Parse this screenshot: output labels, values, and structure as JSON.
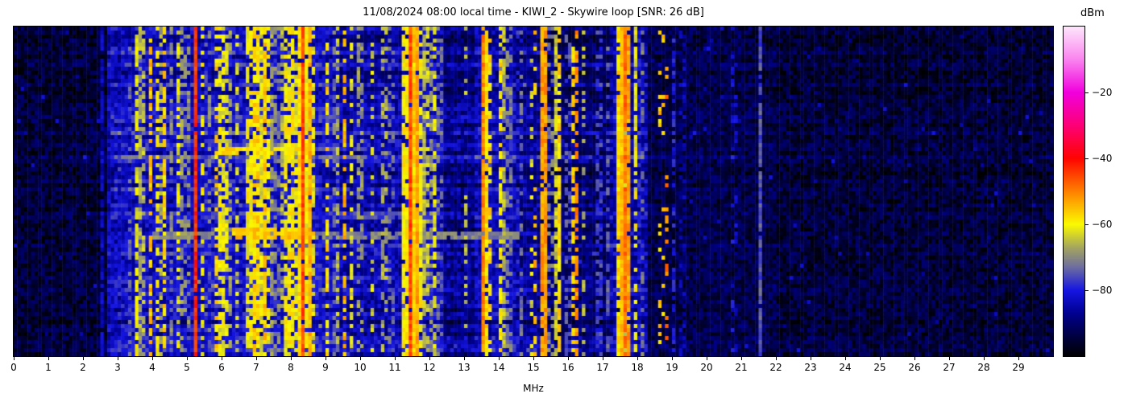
{
  "figure": {
    "title": "11/08/2024 08:00 local time - KIWI_2 - Skywire loop [SNR: 26 dB]"
  },
  "chart_data": {
    "type": "heatmap",
    "subtype": "radio-spectrum-waterfall",
    "title": "11/08/2024 08:00 local time - KIWI_2 - Skywire loop [SNR: 26 dB]",
    "xlabel": "MHz",
    "x_range": [
      0,
      30
    ],
    "x_ticks": [
      0,
      1,
      2,
      3,
      4,
      5,
      6,
      7,
      8,
      9,
      10,
      11,
      12,
      13,
      14,
      15,
      16,
      17,
      18,
      19,
      20,
      21,
      22,
      23,
      24,
      25,
      26,
      27,
      28,
      29
    ],
    "grid": false,
    "colorbar": {
      "label": "dBm",
      "range_top": 0,
      "range_bottom": -100,
      "ticks": [
        {
          "value": -20,
          "label": "−20"
        },
        {
          "value": -40,
          "label": "−40"
        },
        {
          "value": -60,
          "label": "−60"
        },
        {
          "value": -80,
          "label": "−80"
        }
      ],
      "colormap": [
        [
          0,
          "#fde6fc"
        ],
        [
          -10,
          "#fa84ef"
        ],
        [
          -20,
          "#f100dd"
        ],
        [
          -30,
          "#fd0076"
        ],
        [
          -40,
          "#ff0400"
        ],
        [
          -50,
          "#ff8000"
        ],
        [
          -60,
          "#fafa00"
        ],
        [
          -67,
          "#a5a55f"
        ],
        [
          -73,
          "#6d6da0"
        ],
        [
          -80,
          "#1515e2"
        ],
        [
          -87,
          "#00008f"
        ],
        [
          -94,
          "#000040"
        ],
        [
          -100,
          "#000000"
        ]
      ]
    },
    "noise_floor_regions_dbm": [
      {
        "from": 0.0,
        "to": 2.75,
        "floor": -95
      },
      {
        "from": 2.75,
        "to": 5.6,
        "floor": -84
      },
      {
        "from": 5.6,
        "to": 9.4,
        "floor": -83
      },
      {
        "from": 9.4,
        "to": 11.2,
        "floor": -86
      },
      {
        "from": 11.2,
        "to": 12.45,
        "floor": -84
      },
      {
        "from": 12.45,
        "to": 13.35,
        "floor": -89
      },
      {
        "from": 13.35,
        "to": 14.5,
        "floor": -85
      },
      {
        "from": 14.5,
        "to": 15.2,
        "floor": -88
      },
      {
        "from": 15.2,
        "to": 17.25,
        "floor": -91
      },
      {
        "from": 17.25,
        "to": 18.3,
        "floor": -86
      },
      {
        "from": 18.3,
        "to": 22.0,
        "floor": -93.5
      },
      {
        "from": 22.0,
        "to": 30.0,
        "floor": -95
      }
    ],
    "signal_bands": [
      {
        "f_mhz": 2.57,
        "width_mhz": 0.05,
        "level_dbm": -80,
        "duty": 0.85
      },
      {
        "f_mhz": 2.72,
        "width_mhz": 0.04,
        "level_dbm": -86,
        "duty": 0.6
      },
      {
        "f_mhz": 3.2,
        "width_mhz": 0.05,
        "level_dbm": -76,
        "duty": 0.55
      },
      {
        "f_mhz": 3.33,
        "width_mhz": 0.04,
        "level_dbm": -70,
        "duty": 0.4
      },
      {
        "f_mhz": 3.58,
        "width_mhz": 0.09,
        "level_dbm": -57,
        "duty": 0.75
      },
      {
        "f_mhz": 3.73,
        "width_mhz": 0.05,
        "level_dbm": -62,
        "duty": 0.5
      },
      {
        "f_mhz": 3.95,
        "width_mhz": 0.06,
        "level_dbm": -55,
        "duty": 0.6
      },
      {
        "f_mhz": 4.15,
        "width_mhz": 0.05,
        "level_dbm": -60,
        "duty": 0.45
      },
      {
        "f_mhz": 4.33,
        "width_mhz": 0.06,
        "level_dbm": -54,
        "duty": 0.6
      },
      {
        "f_mhz": 4.55,
        "width_mhz": 0.05,
        "level_dbm": -70,
        "duty": 0.5
      },
      {
        "f_mhz": 4.78,
        "width_mhz": 0.06,
        "level_dbm": -57,
        "duty": 0.55
      },
      {
        "f_mhz": 5.0,
        "width_mhz": 0.05,
        "level_dbm": -61,
        "duty": 0.4
      },
      {
        "f_mhz": 5.26,
        "width_mhz": 0.06,
        "level_dbm": -42,
        "duty": 0.97
      },
      {
        "f_mhz": 5.45,
        "width_mhz": 0.05,
        "level_dbm": -60,
        "duty": 0.4
      },
      {
        "f_mhz": 5.62,
        "width_mhz": 0.04,
        "level_dbm": -64,
        "duty": 0.35
      },
      {
        "f_mhz": 5.85,
        "width_mhz": 0.06,
        "level_dbm": -57,
        "duty": 0.5
      },
      {
        "f_mhz": 6.0,
        "width_mhz": 0.09,
        "level_dbm": -54,
        "duty": 0.7
      },
      {
        "f_mhz": 6.18,
        "width_mhz": 0.06,
        "level_dbm": -57,
        "duty": 0.55
      },
      {
        "f_mhz": 6.45,
        "width_mhz": 0.05,
        "level_dbm": -62,
        "duty": 0.4
      },
      {
        "f_mhz": 6.8,
        "width_mhz": 0.09,
        "level_dbm": -53,
        "duty": 0.7
      },
      {
        "f_mhz": 7.0,
        "width_mhz": 0.11,
        "level_dbm": -51,
        "duty": 0.8
      },
      {
        "f_mhz": 7.22,
        "width_mhz": 0.09,
        "level_dbm": -52,
        "duty": 0.75
      },
      {
        "f_mhz": 7.38,
        "width_mhz": 0.06,
        "level_dbm": -56,
        "duty": 0.55
      },
      {
        "f_mhz": 7.6,
        "width_mhz": 0.05,
        "level_dbm": -62,
        "duty": 0.4
      },
      {
        "f_mhz": 7.82,
        "width_mhz": 0.06,
        "level_dbm": -55,
        "duty": 0.6
      },
      {
        "f_mhz": 8.0,
        "width_mhz": 0.08,
        "level_dbm": -52,
        "duty": 0.7
      },
      {
        "f_mhz": 8.17,
        "width_mhz": 0.05,
        "level_dbm": -58,
        "duty": 0.5
      },
      {
        "f_mhz": 8.34,
        "width_mhz": 0.07,
        "level_dbm": -44,
        "duty": 0.96
      },
      {
        "f_mhz": 8.52,
        "width_mhz": 0.09,
        "level_dbm": -50,
        "duty": 0.9
      },
      {
        "f_mhz": 8.67,
        "width_mhz": 0.05,
        "level_dbm": -58,
        "duty": 0.5
      },
      {
        "f_mhz": 9.05,
        "width_mhz": 0.05,
        "level_dbm": -58,
        "duty": 0.5
      },
      {
        "f_mhz": 9.32,
        "width_mhz": 0.05,
        "level_dbm": -60,
        "duty": 0.45
      },
      {
        "f_mhz": 9.55,
        "width_mhz": 0.06,
        "level_dbm": -55,
        "duty": 0.55
      },
      {
        "f_mhz": 9.77,
        "width_mhz": 0.05,
        "level_dbm": -58,
        "duty": 0.5
      },
      {
        "f_mhz": 10.0,
        "width_mhz": 0.05,
        "level_dbm": -60,
        "duty": 0.4
      },
      {
        "f_mhz": 10.35,
        "width_mhz": 0.05,
        "level_dbm": -63,
        "duty": 0.35
      },
      {
        "f_mhz": 10.7,
        "width_mhz": 0.05,
        "level_dbm": -58,
        "duty": 0.5
      },
      {
        "f_mhz": 10.9,
        "width_mhz": 0.04,
        "level_dbm": -64,
        "duty": 0.35
      },
      {
        "f_mhz": 11.3,
        "width_mhz": 0.08,
        "level_dbm": -52,
        "duty": 0.8
      },
      {
        "f_mhz": 11.46,
        "width_mhz": 0.09,
        "level_dbm": -44,
        "duty": 0.97
      },
      {
        "f_mhz": 11.62,
        "width_mhz": 0.1,
        "level_dbm": -49,
        "duty": 0.93
      },
      {
        "f_mhz": 11.78,
        "width_mhz": 0.07,
        "level_dbm": -55,
        "duty": 0.7
      },
      {
        "f_mhz": 11.93,
        "width_mhz": 0.05,
        "level_dbm": -60,
        "duty": 0.5
      },
      {
        "f_mhz": 12.12,
        "width_mhz": 0.05,
        "level_dbm": -57,
        "duty": 0.5
      },
      {
        "f_mhz": 12.3,
        "width_mhz": 0.05,
        "level_dbm": -64,
        "duty": 0.4
      },
      {
        "f_mhz": 13.05,
        "width_mhz": 0.04,
        "level_dbm": -66,
        "duty": 0.35
      },
      {
        "f_mhz": 13.58,
        "width_mhz": 0.06,
        "level_dbm": -46,
        "duty": 0.92
      },
      {
        "f_mhz": 13.75,
        "width_mhz": 0.05,
        "level_dbm": -58,
        "duty": 0.5
      },
      {
        "f_mhz": 14.08,
        "width_mhz": 0.06,
        "level_dbm": -54,
        "duty": 0.65
      },
      {
        "f_mhz": 14.3,
        "width_mhz": 0.05,
        "level_dbm": -62,
        "duty": 0.4
      },
      {
        "f_mhz": 14.62,
        "width_mhz": 0.05,
        "level_dbm": -68,
        "duty": 0.4
      },
      {
        "f_mhz": 15.02,
        "width_mhz": 0.05,
        "level_dbm": -50,
        "duty": 0.3
      },
      {
        "f_mhz": 15.3,
        "width_mhz": 0.06,
        "level_dbm": -44,
        "duty": 0.93
      },
      {
        "f_mhz": 15.5,
        "width_mhz": 0.04,
        "level_dbm": -62,
        "duty": 0.35
      },
      {
        "f_mhz": 15.72,
        "width_mhz": 0.05,
        "level_dbm": -52,
        "duty": 0.8
      },
      {
        "f_mhz": 16.0,
        "width_mhz": 0.04,
        "level_dbm": -66,
        "duty": 0.35
      },
      {
        "f_mhz": 16.22,
        "width_mhz": 0.06,
        "level_dbm": -46,
        "duty": 0.6
      },
      {
        "f_mhz": 16.45,
        "width_mhz": 0.04,
        "level_dbm": -66,
        "duty": 0.35
      },
      {
        "f_mhz": 16.9,
        "width_mhz": 0.05,
        "level_dbm": -68,
        "duty": 0.45
      },
      {
        "f_mhz": 17.15,
        "width_mhz": 0.04,
        "level_dbm": -74,
        "duty": 0.5
      },
      {
        "f_mhz": 17.5,
        "width_mhz": 0.07,
        "level_dbm": -50,
        "duty": 0.92
      },
      {
        "f_mhz": 17.62,
        "width_mhz": 0.07,
        "level_dbm": -44,
        "duty": 0.95
      },
      {
        "f_mhz": 17.74,
        "width_mhz": 0.07,
        "level_dbm": -51,
        "duty": 0.9
      },
      {
        "f_mhz": 17.97,
        "width_mhz": 0.05,
        "level_dbm": -57,
        "duty": 0.55
      },
      {
        "f_mhz": 18.12,
        "width_mhz": 0.04,
        "level_dbm": -66,
        "duty": 0.4
      },
      {
        "f_mhz": 18.7,
        "width_mhz": 0.05,
        "level_dbm": -47,
        "duty": 0.15
      },
      {
        "f_mhz": 18.85,
        "width_mhz": 0.05,
        "level_dbm": -50,
        "duty": 0.13
      },
      {
        "f_mhz": 19.05,
        "width_mhz": 0.04,
        "level_dbm": -80,
        "duty": 0.5
      },
      {
        "f_mhz": 19.3,
        "width_mhz": 0.04,
        "level_dbm": -76,
        "duty": 0.3
      },
      {
        "f_mhz": 20.1,
        "width_mhz": 0.04,
        "level_dbm": -83,
        "duty": 0.8
      },
      {
        "f_mhz": 20.8,
        "width_mhz": 0.04,
        "level_dbm": -72,
        "duty": 0.22
      },
      {
        "f_mhz": 21.55,
        "width_mhz": 0.05,
        "level_dbm": -75,
        "duty": 0.9
      },
      {
        "f_mhz": 23.2,
        "width_mhz": 0.03,
        "level_dbm": -87,
        "duty": 0.4
      }
    ],
    "horizontal_streaks": [
      {
        "row_from": 0.355,
        "row_to": 0.385,
        "f_from": 5.9,
        "f_to": 8.65,
        "level_dbm": -58
      },
      {
        "row_from": 0.36,
        "row_to": 0.378,
        "f_from": 8.65,
        "f_to": 10.2,
        "level_dbm": -74
      },
      {
        "row_from": 0.605,
        "row_to": 0.645,
        "f_from": 6.3,
        "f_to": 8.7,
        "level_dbm": -56
      },
      {
        "row_from": 0.61,
        "row_to": 0.645,
        "f_from": 8.7,
        "f_to": 14.6,
        "level_dbm": -71
      },
      {
        "row_from": 0.615,
        "row_to": 0.635,
        "f_from": 4.0,
        "f_to": 6.3,
        "level_dbm": -70
      },
      {
        "row_from": 0.56,
        "row_to": 0.575,
        "f_from": 9.4,
        "f_to": 11.9,
        "level_dbm": -76
      }
    ]
  }
}
